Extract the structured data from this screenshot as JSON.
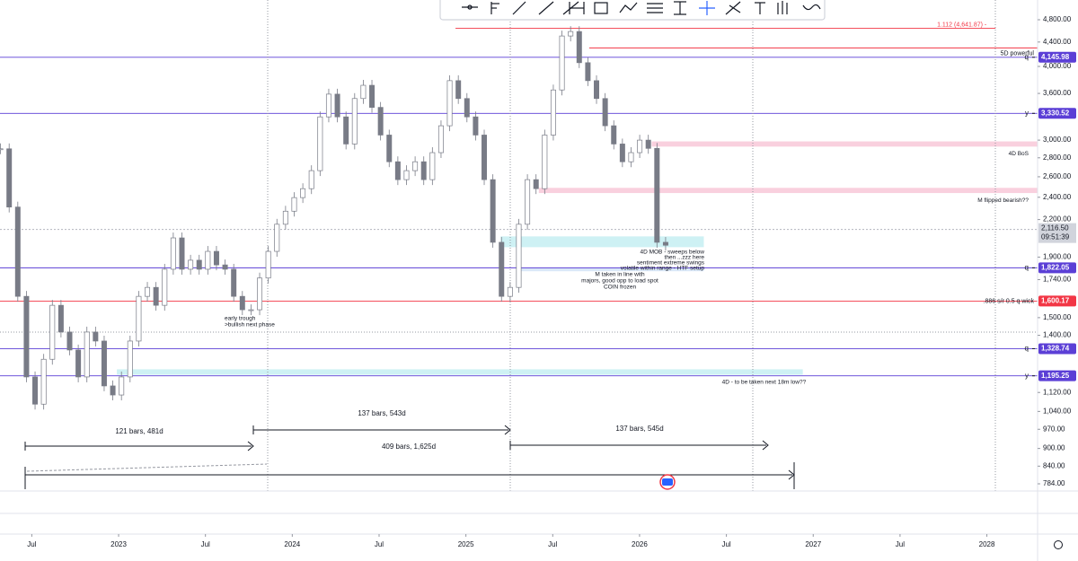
{
  "chart_data": {
    "type": "candlestick",
    "log_scale": true,
    "candle_color": "#787b86",
    "ylim": [
      784,
      4800
    ],
    "yticks": [
      {
        "value": 4800,
        "label": "4,800.00"
      },
      {
        "value": 4400,
        "label": "4,400.00"
      },
      {
        "value": 4000,
        "label": "4,000.00"
      },
      {
        "value": 3600,
        "label": "3,600.00"
      },
      {
        "value": 3000,
        "label": "3,000.00"
      },
      {
        "value": 2800,
        "label": "2,800.00"
      },
      {
        "value": 2600,
        "label": "2,600.00"
      },
      {
        "value": 2400,
        "label": "2,400.00"
      },
      {
        "value": 2200,
        "label": "2,200.00"
      },
      {
        "value": 1900,
        "label": "1,900.00"
      },
      {
        "value": 1740,
        "label": "1,740.00"
      },
      {
        "value": 1500,
        "label": "1,500.00"
      },
      {
        "value": 1400,
        "label": "1,400.00"
      },
      {
        "value": 1120,
        "label": "1,120.00"
      },
      {
        "value": 1040,
        "label": "1,040.00"
      },
      {
        "value": 970,
        "label": "970.00"
      },
      {
        "value": 900,
        "label": "900.00"
      },
      {
        "value": 840,
        "label": "840.00"
      },
      {
        "value": 784,
        "label": "784.00"
      }
    ],
    "xlim": [
      2022.317,
      2028.292
    ],
    "xticks": [
      {
        "value": 2022.5,
        "label": "Jul"
      },
      2023,
      {
        "value": 2023.5,
        "label": "Jul"
      },
      2024,
      {
        "value": 2024.5,
        "label": "Jul"
      },
      2025,
      {
        "value": 2025.5,
        "label": "Jul"
      },
      2026,
      {
        "value": 2026.5,
        "label": "Jul"
      },
      2027,
      {
        "value": 2027.5,
        "label": "Jul"
      },
      2028
    ],
    "period": [
      2022.32,
      2026.15
    ],
    "closes": [
      2900,
      2310,
      1630,
      1190,
      1070,
      1275,
      1574,
      1418,
      1322,
      1190,
      1418,
      1369,
      1149,
      1109,
      1190,
      1369,
      1630,
      1688,
      1574,
      1812,
      2048,
      1812,
      1877,
      1812,
      1943,
      1843,
      1812,
      1630,
      1547,
      1547,
      1751,
      1943,
      2160,
      2273,
      2397,
      2482,
      2663,
      3285,
      3590,
      3285,
      2955,
      3529,
      3716,
      3409,
      3060,
      2757,
      2571,
      2663,
      2757,
      2571,
      2857,
      3173,
      3784,
      3529,
      3285,
      3060,
      2571,
      2013,
      1630,
      1688,
      2160,
      2571,
      2482,
      3060,
      3649,
      4505,
      4584,
      4059,
      3784,
      3529,
      3173,
      2955,
      2757,
      2857,
      3000,
      2905,
      2013,
      1990
    ],
    "levels": [
      {
        "value": 4641.87,
        "color": "#f23645",
        "from": 2024.94,
        "to": 2028.05,
        "note": "1.112 (4,641.87) -"
      },
      {
        "value": 4300,
        "color": "#f23645",
        "from": 2025.71
      },
      {
        "value": 4145.98,
        "color": "#5b3fd6",
        "label": "4,145.98",
        "note": "5D powerful",
        "tag": "q"
      },
      {
        "value": 3330.52,
        "color": "#5b3fd6",
        "label": "3,330.52",
        "tag": "y"
      },
      {
        "value": 1822.05,
        "color": "#5b3fd6",
        "label": "1,822.05",
        "tag": "q"
      },
      {
        "value": 1600.17,
        "color": "#f23645",
        "label": "1,600.17",
        "note": ".886  s/r  0.5 q wick"
      },
      {
        "value": 1328.74,
        "color": "#5b3fd6",
        "label": "1,328.74",
        "tag": "q"
      },
      {
        "value": 1195.25,
        "color": "#5b3fd6",
        "label": "1,195.25",
        "tag": "y"
      }
    ],
    "zones": [
      {
        "low": 2925,
        "high": 2985,
        "from": 2026.07,
        "color": "#f8c8d8",
        "note": "4D BoS"
      },
      {
        "low": 2440,
        "high": 2490,
        "from": 2025.42,
        "color": "#f8c8d8",
        "note": "M flipped bearish??"
      },
      {
        "low": 1975,
        "high": 2060,
        "from": 2025.2,
        "to": 2026.37,
        "color": "#c6eef2"
      },
      {
        "low": 1798,
        "high": 1820,
        "from": 2025.3,
        "to": 2026.37,
        "color": "#d4e4f7"
      },
      {
        "low": 1200,
        "high": 1226,
        "from": 2022.99,
        "to": 2026.94,
        "color": "#c6eef2",
        "note": "4D - to be taken next 18m low??"
      }
    ],
    "last_price": {
      "value": 2116.5,
      "label": "2,116.50",
      "countdown": "09:51:39"
    },
    "annotations": {
      "trough": [
        "early trough",
        ">bullish next phase"
      ],
      "notes": [
        "4D MOB - sweeps below",
        "then ...zzz here",
        "sentiment extreme swings",
        "volatile within range - HTF setup",
        "M taken in line with",
        "majors, good opp to load spot",
        "COIN frozen"
      ]
    },
    "measures": [
      "121 bars, 481d",
      "137 bars, 543d",
      "137 bars, 545d",
      "409 bars, 1,625d"
    ]
  }
}
